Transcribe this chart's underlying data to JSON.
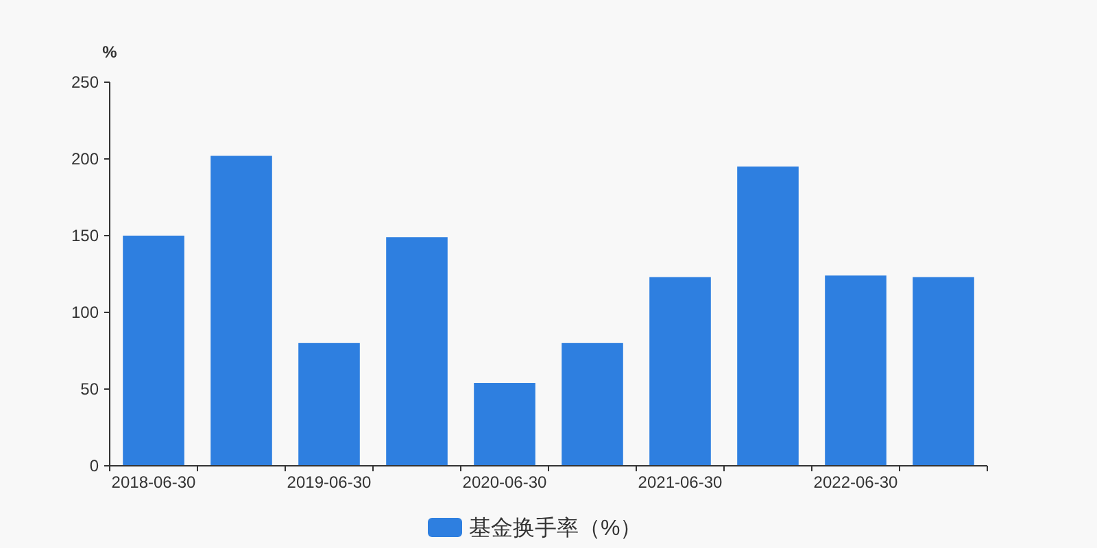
{
  "chart_data": {
    "type": "bar",
    "ylabel": "%",
    "categories": [
      "2018-06-30",
      null,
      "2019-06-30",
      null,
      "2020-06-30",
      null,
      "2021-06-30",
      null,
      "2022-06-30",
      null
    ],
    "series": [
      {
        "name": "基金换手率（%）",
        "color": "#2e7fe0",
        "values": [
          150,
          202,
          80,
          149,
          54,
          80,
          123,
          195,
          124,
          123
        ]
      }
    ],
    "ylim": [
      0,
      250
    ],
    "yticks": [
      0,
      50,
      100,
      150,
      200,
      250
    ],
    "legend": "bottom"
  }
}
